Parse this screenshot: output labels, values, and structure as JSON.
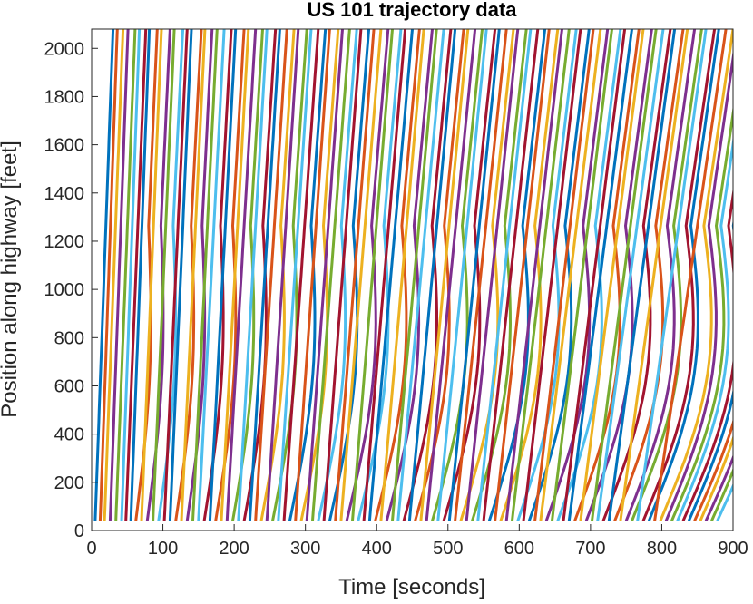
{
  "chart_data": {
    "type": "line",
    "title": "US 101 trajectory data",
    "xlabel": "Time [seconds]",
    "ylabel": "Position along highway [feet]",
    "xlim": [
      0,
      900
    ],
    "ylim": [
      0,
      2080
    ],
    "xticks": [
      0,
      100,
      200,
      300,
      400,
      500,
      600,
      700,
      800,
      900
    ],
    "yticks": [
      0,
      200,
      400,
      600,
      800,
      1000,
      1200,
      1400,
      1600,
      1800,
      2000
    ],
    "x_tick_labels": [
      "0",
      "100",
      "200",
      "300",
      "400",
      "500",
      "600",
      "700",
      "800",
      "900"
    ],
    "y_tick_labels": [
      "0",
      "200",
      "400",
      "600",
      "800",
      "1000",
      "1200",
      "1400",
      "1600",
      "1800",
      "2000"
    ],
    "grid": false,
    "palette": [
      "#0072bd",
      "#d95319",
      "#edb120",
      "#7e2f8e",
      "#77ac30",
      "#4dbeee",
      "#a2142f"
    ],
    "position_range_ft": [
      40,
      2080
    ],
    "series": [
      {
        "start": 5,
        "travel_time": 25,
        "slow": false
      },
      {
        "start": 12,
        "travel_time": 24,
        "slow": false
      },
      {
        "start": 18,
        "travel_time": 26,
        "slow": false
      },
      {
        "start": 26,
        "travel_time": 25,
        "slow": false
      },
      {
        "start": 34,
        "travel_time": 27,
        "slow": false
      },
      {
        "start": 42,
        "travel_time": 25,
        "slow": false
      },
      {
        "start": 48,
        "travel_time": 28,
        "slow": false
      },
      {
        "start": 55,
        "travel_time": 26,
        "slow": false
      },
      {
        "start": 62,
        "travel_time": 30,
        "slow": true
      },
      {
        "start": 70,
        "travel_time": 28,
        "slow": false
      },
      {
        "start": 78,
        "travel_time": 32,
        "slow": true
      },
      {
        "start": 86,
        "travel_time": 30,
        "slow": false
      },
      {
        "start": 94,
        "travel_time": 34,
        "slow": true
      },
      {
        "start": 102,
        "travel_time": 32,
        "slow": false
      },
      {
        "start": 110,
        "travel_time": 30,
        "slow": false
      },
      {
        "start": 118,
        "travel_time": 36,
        "slow": true
      },
      {
        "start": 126,
        "travel_time": 33,
        "slow": false
      },
      {
        "start": 134,
        "travel_time": 35,
        "slow": true
      },
      {
        "start": 142,
        "travel_time": 34,
        "slow": false
      },
      {
        "start": 150,
        "travel_time": 36,
        "slow": false
      },
      {
        "start": 158,
        "travel_time": 38,
        "slow": true
      },
      {
        "start": 166,
        "travel_time": 36,
        "slow": false
      },
      {
        "start": 174,
        "travel_time": 40,
        "slow": true
      },
      {
        "start": 182,
        "travel_time": 38,
        "slow": false
      },
      {
        "start": 190,
        "travel_time": 40,
        "slow": false
      },
      {
        "start": 198,
        "travel_time": 42,
        "slow": true
      },
      {
        "start": 206,
        "travel_time": 40,
        "slow": false
      },
      {
        "start": 214,
        "travel_time": 44,
        "slow": true
      },
      {
        "start": 222,
        "travel_time": 42,
        "slow": false
      },
      {
        "start": 230,
        "travel_time": 44,
        "slow": false
      },
      {
        "start": 238,
        "travel_time": 46,
        "slow": true
      },
      {
        "start": 246,
        "travel_time": 44,
        "slow": false
      },
      {
        "start": 254,
        "travel_time": 48,
        "slow": true
      },
      {
        "start": 262,
        "travel_time": 46,
        "slow": false
      },
      {
        "start": 270,
        "travel_time": 48,
        "slow": false
      },
      {
        "start": 278,
        "travel_time": 50,
        "slow": true
      },
      {
        "start": 286,
        "travel_time": 48,
        "slow": false
      },
      {
        "start": 294,
        "travel_time": 52,
        "slow": true
      },
      {
        "start": 302,
        "travel_time": 50,
        "slow": false
      },
      {
        "start": 310,
        "travel_time": 52,
        "slow": false
      },
      {
        "start": 318,
        "travel_time": 54,
        "slow": true
      },
      {
        "start": 326,
        "travel_time": 52,
        "slow": false
      },
      {
        "start": 334,
        "travel_time": 55,
        "slow": true
      },
      {
        "start": 342,
        "travel_time": 54,
        "slow": false
      },
      {
        "start": 350,
        "travel_time": 56,
        "slow": false
      },
      {
        "start": 358,
        "travel_time": 58,
        "slow": true
      },
      {
        "start": 366,
        "travel_time": 56,
        "slow": false
      },
      {
        "start": 374,
        "travel_time": 60,
        "slow": true
      },
      {
        "start": 382,
        "travel_time": 58,
        "slow": false
      },
      {
        "start": 390,
        "travel_time": 60,
        "slow": false
      },
      {
        "start": 398,
        "travel_time": 62,
        "slow": true
      },
      {
        "start": 406,
        "travel_time": 60,
        "slow": false
      },
      {
        "start": 414,
        "travel_time": 64,
        "slow": true
      },
      {
        "start": 422,
        "travel_time": 62,
        "slow": false
      },
      {
        "start": 430,
        "travel_time": 64,
        "slow": false
      },
      {
        "start": 438,
        "travel_time": 66,
        "slow": true
      },
      {
        "start": 446,
        "travel_time": 64,
        "slow": false
      },
      {
        "start": 454,
        "travel_time": 68,
        "slow": true
      },
      {
        "start": 462,
        "travel_time": 66,
        "slow": false
      },
      {
        "start": 470,
        "travel_time": 68,
        "slow": false
      },
      {
        "start": 478,
        "travel_time": 70,
        "slow": true
      },
      {
        "start": 486,
        "travel_time": 68,
        "slow": false
      },
      {
        "start": 494,
        "travel_time": 72,
        "slow": true
      },
      {
        "start": 502,
        "travel_time": 70,
        "slow": false
      },
      {
        "start": 510,
        "travel_time": 72,
        "slow": false
      },
      {
        "start": 518,
        "travel_time": 74,
        "slow": true
      },
      {
        "start": 526,
        "travel_time": 72,
        "slow": false
      },
      {
        "start": 534,
        "travel_time": 76,
        "slow": true
      },
      {
        "start": 542,
        "travel_time": 74,
        "slow": false
      },
      {
        "start": 550,
        "travel_time": 76,
        "slow": false
      },
      {
        "start": 558,
        "travel_time": 78,
        "slow": true
      },
      {
        "start": 566,
        "travel_time": 76,
        "slow": false
      },
      {
        "start": 574,
        "travel_time": 80,
        "slow": true
      },
      {
        "start": 582,
        "travel_time": 78,
        "slow": false
      },
      {
        "start": 590,
        "travel_time": 80,
        "slow": false
      },
      {
        "start": 598,
        "travel_time": 82,
        "slow": true
      },
      {
        "start": 606,
        "travel_time": 80,
        "slow": false
      },
      {
        "start": 614,
        "travel_time": 84,
        "slow": true
      },
      {
        "start": 622,
        "travel_time": 82,
        "slow": false
      },
      {
        "start": 630,
        "travel_time": 84,
        "slow": false
      },
      {
        "start": 638,
        "travel_time": 86,
        "slow": true
      },
      {
        "start": 646,
        "travel_time": 84,
        "slow": false
      },
      {
        "start": 654,
        "travel_time": 88,
        "slow": true
      },
      {
        "start": 662,
        "travel_time": 86,
        "slow": false
      },
      {
        "start": 670,
        "travel_time": 88,
        "slow": false
      },
      {
        "start": 678,
        "travel_time": 90,
        "slow": true
      },
      {
        "start": 686,
        "travel_time": 88,
        "slow": false
      },
      {
        "start": 694,
        "travel_time": 92,
        "slow": true
      },
      {
        "start": 702,
        "travel_time": 90,
        "slow": false
      },
      {
        "start": 710,
        "travel_time": 92,
        "slow": false
      },
      {
        "start": 718,
        "travel_time": 94,
        "slow": true
      },
      {
        "start": 726,
        "travel_time": 92,
        "slow": false
      },
      {
        "start": 734,
        "travel_time": 96,
        "slow": true
      },
      {
        "start": 742,
        "travel_time": 94,
        "slow": false
      },
      {
        "start": 750,
        "travel_time": 96,
        "slow": true
      },
      {
        "start": 758,
        "travel_time": 98,
        "slow": true
      },
      {
        "start": 766,
        "travel_time": 96,
        "slow": false
      },
      {
        "start": 774,
        "travel_time": 100,
        "slow": true
      },
      {
        "start": 782,
        "travel_time": 98,
        "slow": true
      },
      {
        "start": 790,
        "travel_time": 100,
        "slow": false
      },
      {
        "start": 798,
        "travel_time": 102,
        "slow": true
      },
      {
        "start": 806,
        "travel_time": 100,
        "slow": true
      },
      {
        "start": 814,
        "travel_time": 104,
        "slow": true
      },
      {
        "start": 822,
        "travel_time": 102,
        "slow": true
      },
      {
        "start": 830,
        "travel_time": 106,
        "slow": true
      },
      {
        "start": 838,
        "travel_time": 104,
        "slow": true
      },
      {
        "start": 846,
        "travel_time": 108,
        "slow": true
      },
      {
        "start": 854,
        "travel_time": 106,
        "slow": true
      },
      {
        "start": 862,
        "travel_time": 110,
        "slow": true
      },
      {
        "start": 870,
        "travel_time": 108,
        "slow": true
      },
      {
        "start": 878,
        "travel_time": 112,
        "slow": true
      }
    ]
  }
}
